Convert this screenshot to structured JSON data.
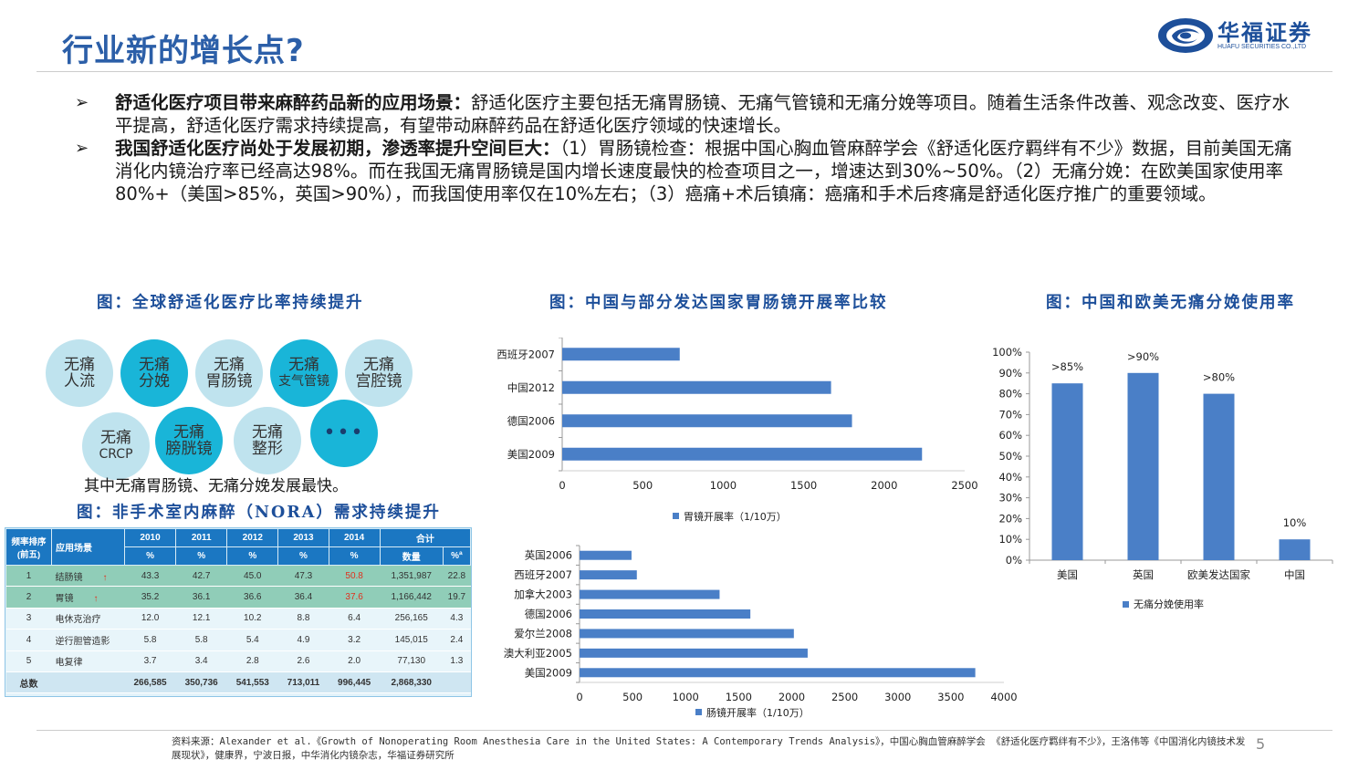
{
  "header": {
    "title": "行业新的增长点?",
    "logo_name": "华福证券",
    "logo_sub": "HUAFU SECURITIES CO.,LTD"
  },
  "bullets": [
    {
      "mark": "➢",
      "bold": "舒适化医疗项目带来麻醉药品新的应用场景：",
      "text": "舒适化医疗主要包括无痛胃肠镜、无痛气管镜和无痛分娩等项目。随着生活条件改善、观念改变、医疗水平提高，舒适化医疗需求持续提高，有望带动麻醉药品在舒适化医疗领域的快速增长。"
    },
    {
      "mark": "➢",
      "bold": "我国舒适化医疗尚处于发展初期，渗透率提升空间巨大：",
      "text": "（1）胃肠镜检查：根据中国心胸血管麻醉学会《舒适化医疗羁绊有不少》数据，目前美国无痛消化内镜治疗率已经高达98%。而在我国无痛胃肠镜是国内增长速度最快的检查项目之一，增速达到30%~50%。（2）无痛分娩：在欧美国家使用率80%+（美国>85%，英国>90%），而我国使用率仅在10%左右；（3）癌痛+术后镇痛：癌痛和手术后疼痛是舒适化医疗推广的重要领域。"
    }
  ],
  "fig1": {
    "title": "图：全球舒适化医疗比率持续提升",
    "bubbles": [
      {
        "l1": "无痛",
        "l2": "人流",
        "style": "light"
      },
      {
        "l1": "无痛",
        "l2": "分娩",
        "style": "dark"
      },
      {
        "l1": "无痛",
        "l2": "胃肠镜",
        "style": "light"
      },
      {
        "l1": "无痛",
        "l2": "支气管镜",
        "style": "dark"
      },
      {
        "l1": "无痛",
        "l2": "宫腔镜",
        "style": "light"
      },
      {
        "l1": "无痛",
        "l2": "CRCP",
        "style": "light"
      },
      {
        "l1": "无痛",
        "l2": "膀胱镜",
        "style": "dark"
      },
      {
        "l1": "无痛",
        "l2": "整形",
        "style": "light"
      },
      {
        "l1": "•••",
        "l2": "",
        "style": "dark"
      }
    ],
    "caption": "其中无痛胃肠镜、无痛分娩发展最快。"
  },
  "fig2": {
    "title": "图：非手术室内麻醉（NORA）需求持续提升",
    "header_rank": "频率排序(前五)",
    "header_scene": "应用场景",
    "years": [
      "2010",
      "2011",
      "2012",
      "2013",
      "2014"
    ],
    "header_total": "合计",
    "unit_row": [
      "%",
      "%",
      "%",
      "%",
      "%",
      "数量",
      "%ª"
    ],
    "rows": [
      {
        "rank": "1",
        "scene": "结肠镜",
        "up": "↑",
        "vals": [
          "43.3",
          "42.7",
          "45.0",
          "47.3",
          "50.8"
        ],
        "count": "1,351,987",
        "pct": "22.8"
      },
      {
        "rank": "2",
        "scene": "胃镜",
        "up": "↑",
        "vals": [
          "35.2",
          "36.1",
          "36.6",
          "36.4",
          "37.6"
        ],
        "count": "1,166,442",
        "pct": "19.7"
      },
      {
        "rank": "3",
        "scene": "电休克治疗",
        "up": "",
        "vals": [
          "12.0",
          "12.1",
          "10.2",
          "8.8",
          "6.4"
        ],
        "count": "256,165",
        "pct": "4.3"
      },
      {
        "rank": "4",
        "scene": "逆行胆管造影",
        "up": "",
        "vals": [
          "5.8",
          "5.8",
          "5.4",
          "4.9",
          "3.2"
        ],
        "count": "145,015",
        "pct": "2.4"
      },
      {
        "rank": "5",
        "scene": "电复律",
        "up": "",
        "vals": [
          "3.7",
          "3.4",
          "2.8",
          "2.6",
          "2.0"
        ],
        "count": "77,130",
        "pct": "1.3"
      }
    ],
    "total_label": "总数",
    "total_vals": [
      "266,585",
      "350,736",
      "541,553",
      "713,011",
      "996,445"
    ],
    "total_count": "2,868,330"
  },
  "chart_data": [
    {
      "type": "bar",
      "orientation": "horizontal",
      "title": "图：中国与部分发达国家胃肠镜开展率比较",
      "categories": [
        "西班牙2007",
        "中国2012",
        "德国2006",
        "美国2009"
      ],
      "series": [
        {
          "name": "胃镜开展率（1/10万）",
          "values": [
            730,
            1670,
            1800,
            2235
          ]
        }
      ],
      "xlim": [
        0,
        2500
      ],
      "xticks": [
        0,
        500,
        1000,
        1500,
        2000,
        2500
      ],
      "legend": "bottom",
      "color": "#4a7fc7"
    },
    {
      "type": "bar",
      "orientation": "horizontal",
      "title": "",
      "categories": [
        "英国2006",
        "西班牙2007",
        "加拿大2003",
        "德国2006",
        "爱尔兰2008",
        "澳大利亚2005",
        "美国2009"
      ],
      "series": [
        {
          "name": "肠镜开展率（1/10万）",
          "values": [
            490,
            540,
            1320,
            1610,
            2020,
            2150,
            3730
          ]
        }
      ],
      "xlim": [
        0,
        4000
      ],
      "xticks": [
        0,
        500,
        1000,
        1500,
        2000,
        2500,
        3000,
        3500,
        4000
      ],
      "legend": "bottom",
      "color": "#4a7fc7"
    },
    {
      "type": "bar",
      "title": "图：中国和欧美无痛分娩使用率",
      "categories": [
        "美国",
        "英国",
        "欧美发达国家",
        "中国"
      ],
      "series": [
        {
          "name": "无痛分娩使用率",
          "values": [
            85,
            90,
            80,
            10
          ]
        }
      ],
      "data_labels": [
        ">85%",
        ">90%",
        ">80%",
        "10%"
      ],
      "ylim": [
        0,
        100
      ],
      "yticks": [
        "0%",
        "10%",
        "20%",
        "30%",
        "40%",
        "50%",
        "60%",
        "70%",
        "80%",
        "90%",
        "100%"
      ],
      "legend": "bottom",
      "color": "#4a7fc7"
    }
  ],
  "footer": {
    "source": "资料来源：Alexander et al.《Growth of Nonoperating Room Anesthesia Care in the United States: A Contemporary Trends Analysis》，中国心胸血管麻醉学会 《舒适化医疗羁绊有不少》，王洛伟等《中国消化内镜技术发展现状》，健康界，宁波日报，中华消化内镜杂志，华福证券研究所",
    "page": "5"
  }
}
